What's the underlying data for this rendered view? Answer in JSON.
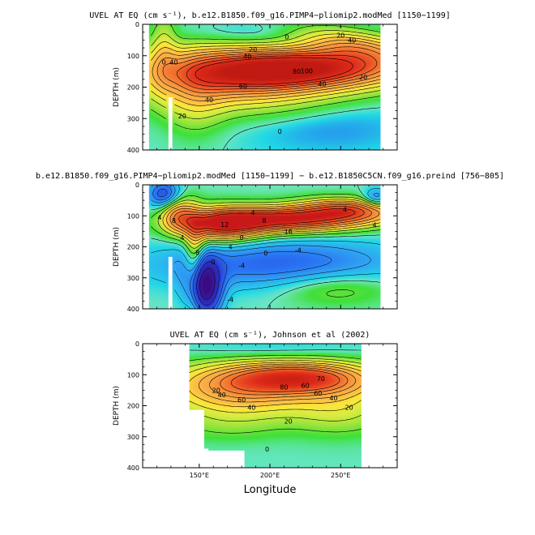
{
  "chart_data": [
    {
      "type": "heatmap",
      "title": "UVEL AT EQ (cm s⁻¹), b.e12.B1850.f09_g16.PIMP4−pliomip2.modMed [1150−1199]",
      "ylabel": "DEPTH (m)",
      "xlabel": "",
      "x_unit": "degrees_east",
      "y_unit": "m",
      "xlim": [
        110,
        290
      ],
      "ylim": [
        0,
        400
      ],
      "y_inverted": true,
      "yticks": [
        0,
        100,
        200,
        300,
        400
      ],
      "ytick_labels": [
        "0",
        "100",
        "200",
        "300",
        "400"
      ],
      "xticks": [
        150,
        200,
        250
      ],
      "xtick_labels": [],
      "data_extent_x": [
        115,
        278
      ],
      "contour_labels": [
        {
          "text": "0",
          "x": 212,
          "y": 40
        },
        {
          "text": "20",
          "x": 250,
          "y": 35
        },
        {
          "text": "40",
          "x": 258,
          "y": 50
        },
        {
          "text": "20",
          "x": 188,
          "y": 80
        },
        {
          "text": "40",
          "x": 184,
          "y": 102
        },
        {
          "text": "100",
          "x": 226,
          "y": 148
        },
        {
          "text": "80",
          "x": 219,
          "y": 150
        },
        {
          "text": "60",
          "x": 181,
          "y": 196
        },
        {
          "text": "40",
          "x": 157,
          "y": 240
        },
        {
          "text": "20",
          "x": 138,
          "y": 292
        },
        {
          "text": "0",
          "x": 207,
          "y": 340
        },
        {
          "text": "40",
          "x": 237,
          "y": 190
        },
        {
          "text": "20",
          "x": 266,
          "y": 168
        },
        {
          "text": "0",
          "x": 125,
          "y": 120
        },
        {
          "text": "40",
          "x": 132,
          "y": 120
        }
      ],
      "core": {
        "x": 225,
        "y": 145,
        "value": 110
      }
    },
    {
      "type": "heatmap",
      "title": "b.e12.B1850.f09_g16.PIMP4−pliomip2.modMed [1150−1199] − b.e12.B1850C5CN.f09_g16.preind [756−805]",
      "ylabel": "DEPTH (m)",
      "xlabel": "",
      "x_unit": "degrees_east",
      "y_unit": "m",
      "xlim": [
        110,
        290
      ],
      "ylim": [
        0,
        400
      ],
      "y_inverted": true,
      "yticks": [
        0,
        100,
        200,
        300,
        400
      ],
      "ytick_labels": [
        "0",
        "100",
        "200",
        "300",
        "400"
      ],
      "xticks": [
        150,
        200,
        250
      ],
      "xtick_labels": [],
      "data_extent_x": [
        115,
        278
      ],
      "contour_labels": [
        {
          "text": "4",
          "x": 188,
          "y": 90
        },
        {
          "text": "8",
          "x": 196,
          "y": 115
        },
        {
          "text": "12",
          "x": 168,
          "y": 128
        },
        {
          "text": "16",
          "x": 213,
          "y": 150
        },
        {
          "text": "4",
          "x": 253,
          "y": 80
        },
        {
          "text": "4",
          "x": 274,
          "y": 130
        },
        {
          "text": "8",
          "x": 180,
          "y": 170
        },
        {
          "text": "4",
          "x": 172,
          "y": 200
        },
        {
          "text": "0",
          "x": 197,
          "y": 220
        },
        {
          "text": "-4",
          "x": 220,
          "y": 210
        },
        {
          "text": "-4",
          "x": 180,
          "y": 260
        },
        {
          "text": "0",
          "x": 160,
          "y": 248
        },
        {
          "text": "-4",
          "x": 172,
          "y": 370
        },
        {
          "text": "4",
          "x": 138,
          "y": 170
        },
        {
          "text": "-8",
          "x": 148,
          "y": 218
        },
        {
          "text": "4",
          "x": 122,
          "y": 105
        },
        {
          "text": "8",
          "x": 132,
          "y": 115
        }
      ]
    },
    {
      "type": "heatmap",
      "title": "UVEL AT EQ (cm s⁻¹), Johnson et al (2002)",
      "ylabel": "DEPTH (m)",
      "xlabel": "Longitude",
      "x_unit": "degrees_east",
      "y_unit": "m",
      "xlim": [
        110,
        290
      ],
      "ylim": [
        0,
        400
      ],
      "y_inverted": true,
      "yticks": [
        0,
        100,
        200,
        300,
        400
      ],
      "ytick_labels": [
        "0",
        "100",
        "200",
        "300",
        "400"
      ],
      "xticks": [
        150,
        200,
        250
      ],
      "xtick_labels": [
        "150°E",
        "200°E",
        "250°E"
      ],
      "data_extent_x": [
        143,
        265
      ],
      "contour_labels": [
        {
          "text": "20",
          "x": 162,
          "y": 150
        },
        {
          "text": "40",
          "x": 166,
          "y": 165
        },
        {
          "text": "60",
          "x": 180,
          "y": 180
        },
        {
          "text": "80",
          "x": 210,
          "y": 140
        },
        {
          "text": "60",
          "x": 225,
          "y": 135
        },
        {
          "text": "60",
          "x": 234,
          "y": 160
        },
        {
          "text": "40",
          "x": 245,
          "y": 175
        },
        {
          "text": "20",
          "x": 256,
          "y": 205
        },
        {
          "text": "20",
          "x": 213,
          "y": 250
        },
        {
          "text": "0",
          "x": 198,
          "y": 340
        },
        {
          "text": "40",
          "x": 187,
          "y": 205
        },
        {
          "text": "70",
          "x": 236,
          "y": 112
        }
      ],
      "core": {
        "x": 220,
        "y": 110,
        "value": 90
      }
    }
  ]
}
